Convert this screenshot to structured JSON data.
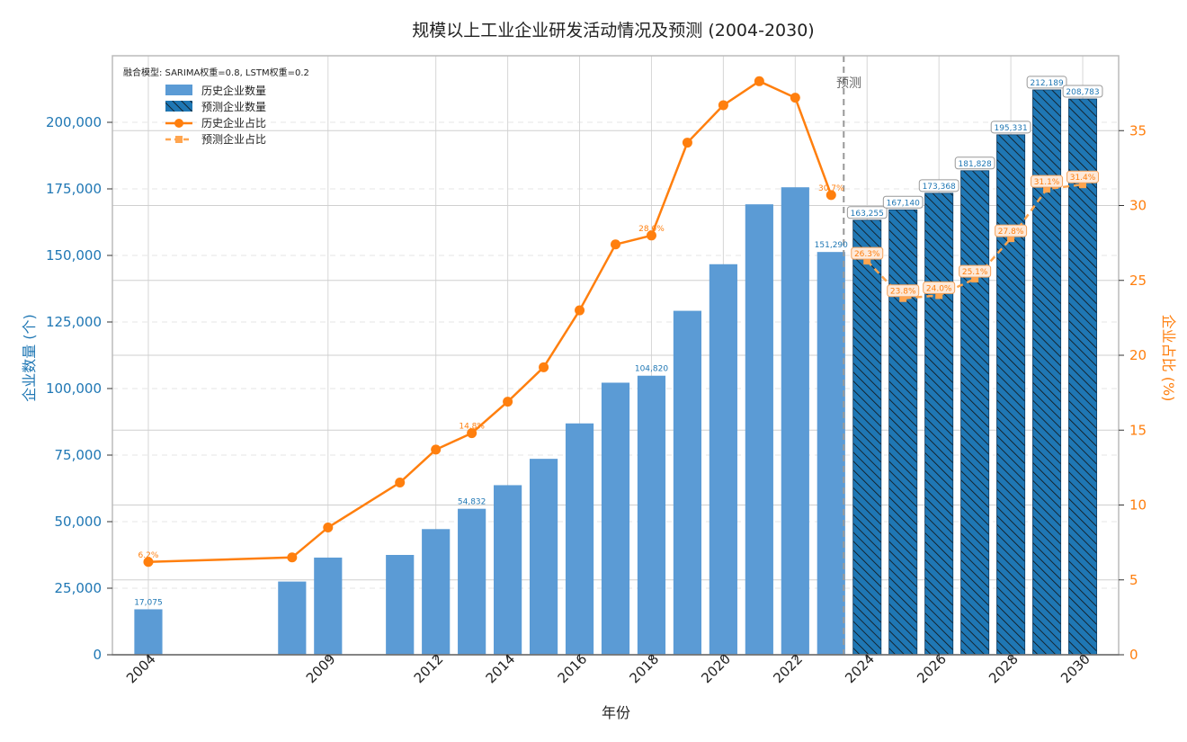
{
  "chart_data": {
    "type": "bar",
    "title": "规模以上工业企业研发活动情况及预测 (2004-2030)",
    "xlabel": "年份",
    "ylabel": "企业数量 (个)",
    "y2label": "企业占比 (%)",
    "note": "融合模型: SARIMA权重=0.8, LSTM权重=0.2",
    "forecast_label": "预测",
    "forecast_start_year": 2023,
    "xlim": [
      2003,
      2031
    ],
    "ylim": [
      0,
      225000
    ],
    "y2lim": [
      0,
      40
    ],
    "x_ticks": [
      2004,
      2009,
      2012,
      2014,
      2016,
      2018,
      2020,
      2022,
      2024,
      2026,
      2028,
      2030
    ],
    "y_ticks": [
      0,
      25000,
      50000,
      75000,
      100000,
      125000,
      150000,
      175000,
      200000
    ],
    "y_tick_labels": [
      "0",
      "25,000",
      "50,000",
      "75,000",
      "100,000",
      "125,000",
      "150,000",
      "175,000",
      "200,000"
    ],
    "y2_ticks": [
      0,
      5,
      10,
      15,
      20,
      25,
      30,
      35
    ],
    "legend": [
      {
        "label": "历史企业数量",
        "kind": "bar"
      },
      {
        "label": "预测企业数量",
        "kind": "hatch"
      },
      {
        "label": "历史企业占比",
        "kind": "line"
      },
      {
        "label": "预测企业占比",
        "kind": "dashed"
      }
    ],
    "legend_position": "top-left",
    "grid": "horizontal dashed",
    "colors": {
      "bar": "#5b9bd5",
      "forecast_bar": "#1f77b4",
      "line": "#ff7f0e",
      "forecast_line": "#ffa54f",
      "forecast_divider": "#999999"
    },
    "series": [
      {
        "name": "历史企业数量",
        "axis": "left",
        "x": [
          2004,
          2008,
          2009,
          2011,
          2012,
          2013,
          2014,
          2015,
          2016,
          2017,
          2018,
          2019,
          2020,
          2021,
          2022,
          2023
        ],
        "values": [
          17075,
          27500,
          36500,
          37500,
          47200,
          54832,
          63700,
          73600,
          86900,
          102200,
          104820,
          129200,
          146700,
          169200,
          175600,
          151290
        ]
      },
      {
        "name": "预测企业数量",
        "axis": "left",
        "x": [
          2024,
          2025,
          2026,
          2027,
          2028,
          2029,
          2030
        ],
        "values": [
          163255,
          167140,
          173368,
          181828,
          195331,
          212189,
          208783
        ]
      },
      {
        "name": "历史企业占比",
        "axis": "right",
        "x": [
          2004,
          2008,
          2009,
          2011,
          2012,
          2013,
          2014,
          2015,
          2016,
          2017,
          2018,
          2019,
          2020,
          2021,
          2022,
          2023
        ],
        "values": [
          6.2,
          6.5,
          8.5,
          11.5,
          13.7,
          14.8,
          16.9,
          19.2,
          23.0,
          27.4,
          28.0,
          34.2,
          36.7,
          38.3,
          37.2,
          30.7
        ]
      },
      {
        "name": "预测企业占比",
        "axis": "right",
        "x": [
          2024,
          2025,
          2026,
          2027,
          2028,
          2029,
          2030
        ],
        "values": [
          26.3,
          23.8,
          24.0,
          25.1,
          27.8,
          31.1,
          31.4
        ]
      }
    ],
    "bar_data_labels": [
      {
        "x": 2004,
        "text": "17,075"
      },
      {
        "x": 2013,
        "text": "54,832"
      },
      {
        "x": 2018,
        "text": "104,820"
      },
      {
        "x": 2023,
        "text": "151,290"
      },
      {
        "x": 2024,
        "text": "163,255"
      },
      {
        "x": 2025,
        "text": "167,140"
      },
      {
        "x": 2026,
        "text": "173,368"
      },
      {
        "x": 2027,
        "text": "181,828"
      },
      {
        "x": 2028,
        "text": "195,331"
      },
      {
        "x": 2029,
        "text": "212,189"
      },
      {
        "x": 2030,
        "text": "208,783"
      }
    ],
    "pct_data_labels": [
      {
        "x": 2004,
        "text": "6.2%"
      },
      {
        "x": 2013,
        "text": "14.8%"
      },
      {
        "x": 2018,
        "text": "28.0%"
      },
      {
        "x": 2023,
        "text": "30.7%"
      },
      {
        "x": 2024,
        "text": "26.3%"
      },
      {
        "x": 2025,
        "text": "23.8%"
      },
      {
        "x": 2026,
        "text": "24.0%"
      },
      {
        "x": 2027,
        "text": "25.1%"
      },
      {
        "x": 2028,
        "text": "27.8%"
      },
      {
        "x": 2029,
        "text": "31.1%"
      },
      {
        "x": 2030,
        "text": "31.4%"
      }
    ]
  }
}
